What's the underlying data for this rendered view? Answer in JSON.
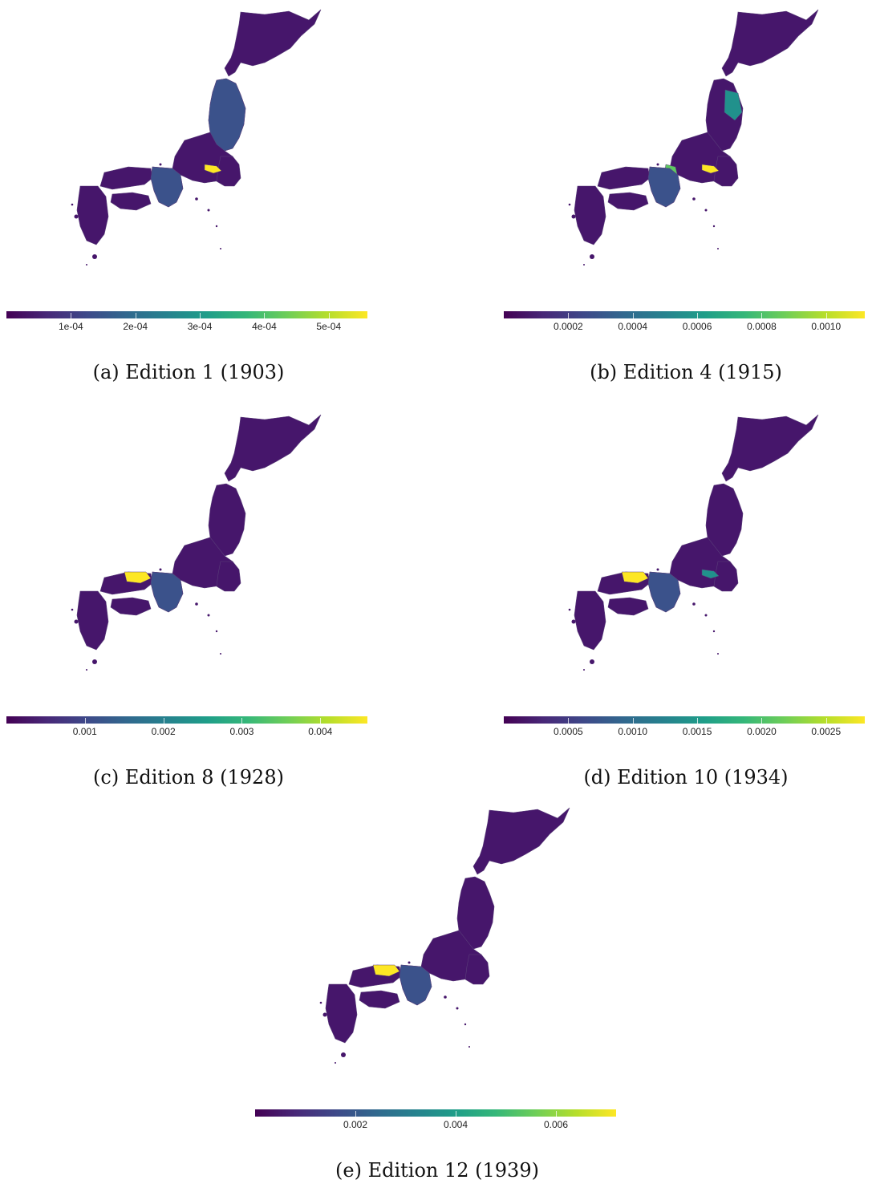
{
  "colors": {
    "base": "#440154",
    "low": "#3b528b",
    "mid": "#21918c",
    "high": "#5ec962",
    "max": "#fde725",
    "land": "#46166b",
    "border": "#5a3f7a"
  },
  "panels": [
    {
      "caption": "(a) Edition 1 (1903)",
      "colorbar_ticks": [
        "1e-04",
        "2e-04",
        "3e-04",
        "4e-04",
        "5e-04"
      ],
      "highlights": [
        "tokyo:max",
        "tohoku:low",
        "kinki:low"
      ]
    },
    {
      "caption": "(b) Edition 4 (1915)",
      "colorbar_ticks": [
        "0.0002",
        "0.0004",
        "0.0006",
        "0.0008",
        "0.0010"
      ],
      "highlights": [
        "tokyo:max",
        "iwate:mid",
        "shiga:high",
        "kinki:low"
      ]
    },
    {
      "caption": "(c) Edition 8 (1928)",
      "colorbar_ticks": [
        "0.001",
        "0.002",
        "0.003",
        "0.004"
      ],
      "highlights": [
        "tottori:max",
        "kinki:low"
      ]
    },
    {
      "caption": "(d) Edition 10 (1934)",
      "colorbar_ticks": [
        "0.0005",
        "0.0010",
        "0.0015",
        "0.0020",
        "0.0025"
      ],
      "highlights": [
        "tottori:max",
        "tokyo:mid",
        "kinki:low"
      ]
    },
    {
      "caption": "(e) Edition 12 (1939)",
      "colorbar_ticks": [
        "0.002",
        "0.004",
        "0.006"
      ],
      "highlights": [
        "tottori:max",
        "kinki:low"
      ]
    }
  ]
}
